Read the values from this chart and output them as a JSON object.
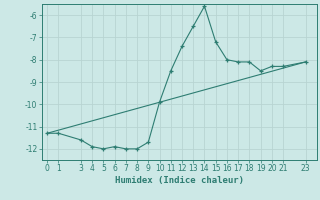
{
  "title": "",
  "xlabel": "Humidex (Indice chaleur)",
  "ylabel": "",
  "background_color": "#cce8e6",
  "grid_color": "#b8d4d2",
  "line_color": "#2e7d72",
  "line1_x": [
    0,
    1,
    3,
    4,
    5,
    6,
    7,
    8,
    9,
    10,
    11,
    12,
    13,
    14,
    15,
    16,
    17,
    18,
    19,
    20,
    21,
    23
  ],
  "line1_y": [
    -11.3,
    -11.3,
    -11.6,
    -11.9,
    -12.0,
    -11.9,
    -12.0,
    -12.0,
    -11.7,
    -9.9,
    -8.5,
    -7.4,
    -6.5,
    -5.6,
    -7.2,
    -8.0,
    -8.1,
    -8.1,
    -8.5,
    -8.3,
    -8.3,
    -8.1
  ],
  "line2_x": [
    0,
    23
  ],
  "line2_y": [
    -11.3,
    -8.1
  ],
  "xlim": [
    -0.5,
    24.0
  ],
  "ylim": [
    -12.5,
    -5.5
  ],
  "yticks": [
    -12,
    -11,
    -10,
    -9,
    -8,
    -7,
    -6
  ],
  "xticks": [
    0,
    1,
    3,
    4,
    5,
    6,
    7,
    8,
    9,
    10,
    11,
    12,
    13,
    14,
    15,
    16,
    17,
    18,
    19,
    20,
    21,
    23
  ],
  "tick_fontsize": 5.5,
  "xlabel_fontsize": 6.5
}
